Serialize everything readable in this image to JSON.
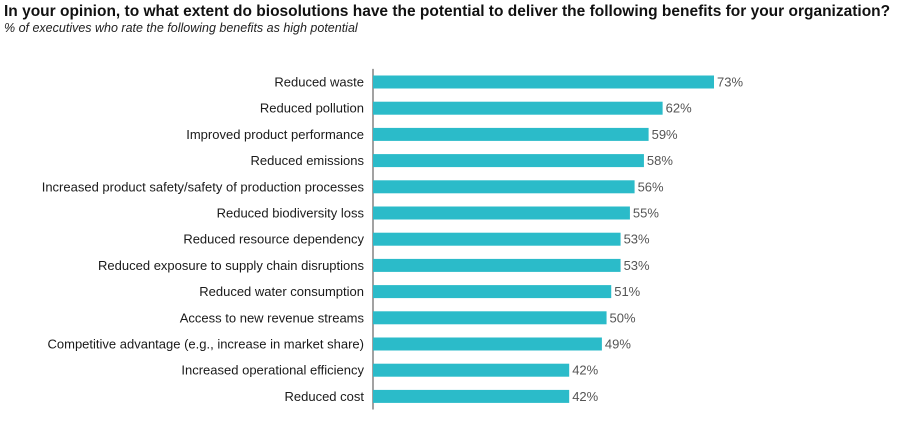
{
  "title": "In your opinion, to what extent do biosolutions have the potential to deliver the following benefits for your organization?",
  "subtitle": "% of executives who rate the following benefits as high potential",
  "colors": {
    "bar": "#2bbbc9",
    "axis": "#444444"
  },
  "chart_data": {
    "type": "bar",
    "orientation": "horizontal",
    "title": "In your opinion, to what extent do biosolutions have the potential to deliver the following benefits for your organization?",
    "subtitle": "% of executives who rate the following benefits as high potential",
    "unit": "%",
    "categories": [
      "Reduced waste",
      "Reduced pollution",
      "Improved product performance",
      "Reduced emissions",
      "Increased product safety/safety of production processes",
      "Reduced biodiversity loss",
      "Reduced resource dependency",
      "Reduced exposure to supply chain disruptions",
      "Reduced water consumption",
      "Access to new revenue streams",
      "Competitive advantage (e.g., increase in market share)",
      "Increased operational efficiency",
      "Reduced cost"
    ],
    "values": [
      73,
      62,
      59,
      58,
      56,
      55,
      53,
      53,
      51,
      50,
      49,
      42,
      42
    ],
    "value_labels": [
      "73%",
      "62%",
      "59%",
      "58%",
      "56%",
      "55%",
      "53%",
      "53%",
      "51%",
      "50%",
      "49%",
      "42%",
      "42%"
    ],
    "xlim": [
      0,
      73
    ],
    "grid": false,
    "legend": "none"
  }
}
